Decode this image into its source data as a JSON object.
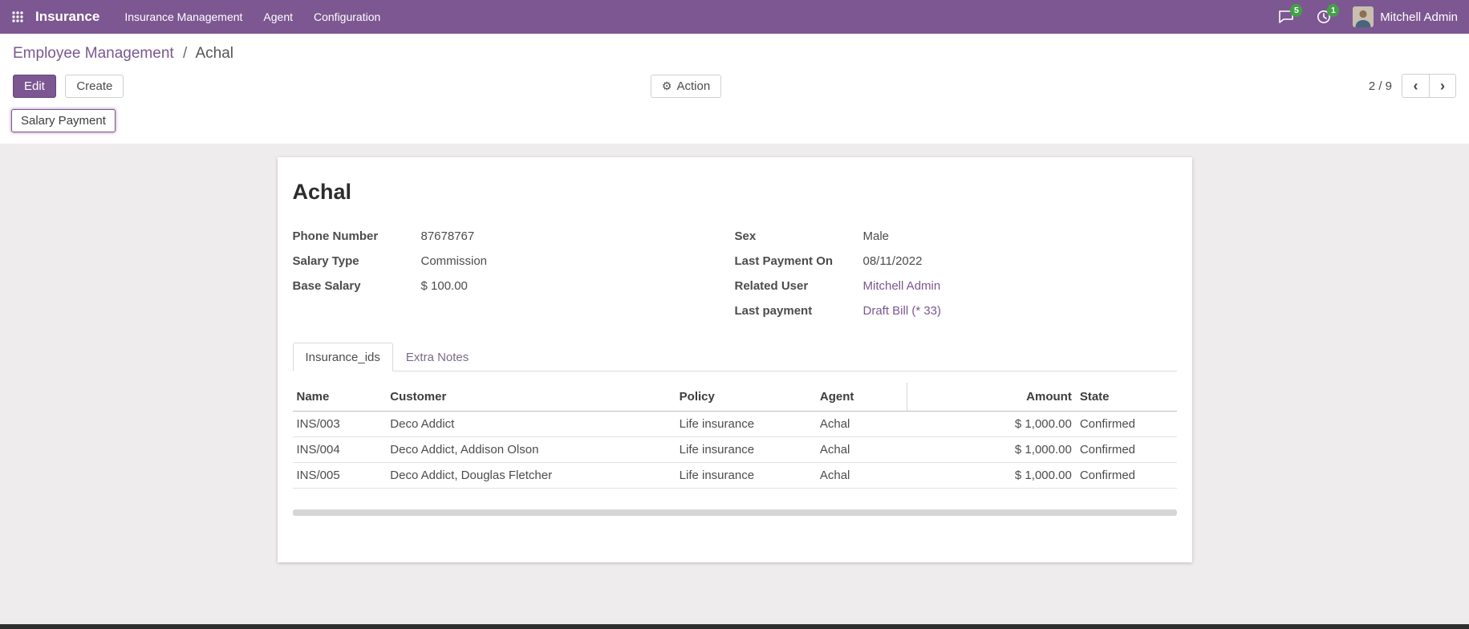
{
  "colors": {
    "navbar": "#7c5791",
    "accent": "#7c5791",
    "badge": "#43a047"
  },
  "icons": {
    "gear": "⚙",
    "chevron_left": "‹",
    "chevron_right": "›"
  },
  "app": {
    "name": "Insurance",
    "menus": [
      "Insurance Management",
      "Agent",
      "Configuration"
    ],
    "user": "Mitchell Admin",
    "badges": {
      "messages": "5",
      "activities": "1"
    }
  },
  "breadcrumb": {
    "parent": "Employee Management",
    "separator": "/",
    "current": "Achal"
  },
  "control_panel": {
    "edit": "Edit",
    "create": "Create",
    "action": "Action",
    "pager": "2 / 9"
  },
  "header_buttons": {
    "salary_payment": "Salary Payment"
  },
  "sheet": {
    "title": "Achal",
    "fields_left": [
      {
        "label": "Phone Number",
        "value": "87678767",
        "link": false
      },
      {
        "label": "Salary Type",
        "value": "Commission",
        "link": false
      },
      {
        "label": "Base Salary",
        "value": "$ 100.00",
        "link": false
      }
    ],
    "fields_right": [
      {
        "label": "Sex",
        "value": "Male",
        "link": false
      },
      {
        "label": "Last Payment On",
        "value": "08/11/2022",
        "link": false
      },
      {
        "label": "Related User",
        "value": "Mitchell Admin",
        "link": true
      },
      {
        "label": "Last payment",
        "value": "Draft Bill (* 33)",
        "link": true
      }
    ],
    "tabs": [
      {
        "label": "Insurance_ids",
        "active": true
      },
      {
        "label": "Extra Notes",
        "active": false
      }
    ],
    "table": {
      "headers": [
        "Name",
        "Customer",
        "Policy",
        "Agent",
        "Amount",
        "State"
      ],
      "rows": [
        [
          "INS/003",
          "Deco Addict",
          "Life insurance",
          "Achal",
          "$ 1,000.00",
          "Confirmed"
        ],
        [
          "INS/004",
          "Deco Addict, Addison Olson",
          "Life insurance",
          "Achal",
          "$ 1,000.00",
          "Confirmed"
        ],
        [
          "INS/005",
          "Deco Addict, Douglas Fletcher",
          "Life insurance",
          "Achal",
          "$ 1,000.00",
          "Confirmed"
        ]
      ]
    }
  }
}
